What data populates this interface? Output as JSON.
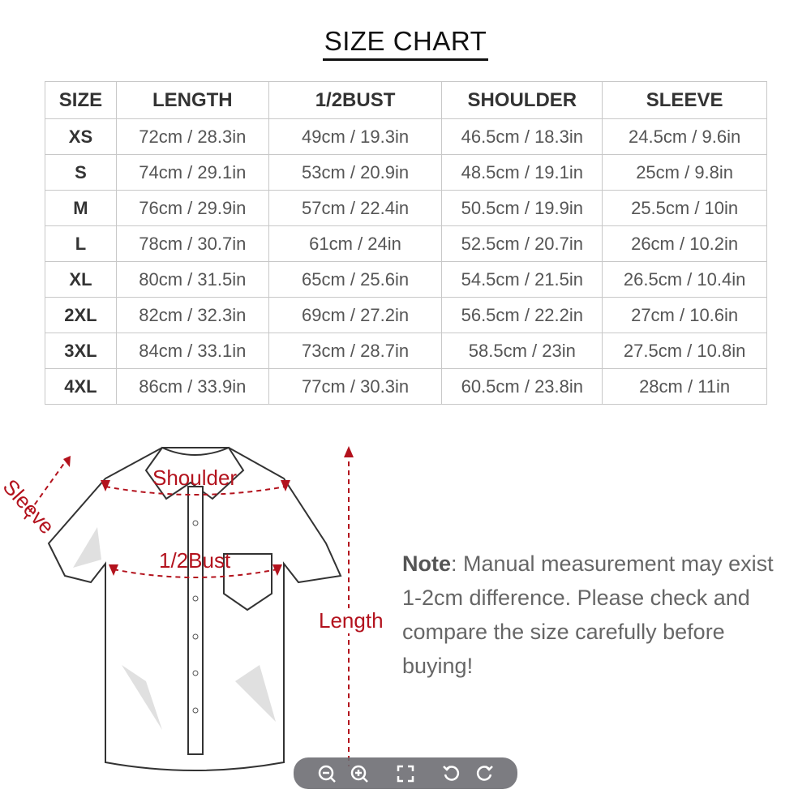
{
  "title": "SIZE CHART",
  "table": {
    "headers": [
      "SIZE",
      "LENGTH",
      "1/2BUST",
      "SHOULDER",
      "SLEEVE"
    ],
    "rows": [
      [
        "XS",
        "72cm / 28.3in",
        "49cm / 19.3in",
        "46.5cm / 18.3in",
        "24.5cm / 9.6in"
      ],
      [
        "S",
        "74cm / 29.1in",
        "53cm / 20.9in",
        "48.5cm / 19.1in",
        "25cm / 9.8in"
      ],
      [
        "M",
        "76cm / 29.9in",
        "57cm / 22.4in",
        "50.5cm / 19.9in",
        "25.5cm / 10in"
      ],
      [
        "L",
        "78cm / 30.7in",
        "61cm / 24in",
        "52.5cm / 20.7in",
        "26cm / 10.2in"
      ],
      [
        "XL",
        "80cm / 31.5in",
        "65cm / 25.6in",
        "54.5cm / 21.5in",
        "26.5cm / 10.4in"
      ],
      [
        "2XL",
        "82cm / 32.3in",
        "69cm / 27.2in",
        "56.5cm / 22.2in",
        "27cm / 10.6in"
      ],
      [
        "3XL",
        "84cm / 33.1in",
        "73cm / 28.7in",
        "58.5cm / 23in",
        "27.5cm / 10.8in"
      ],
      [
        "4XL",
        "86cm / 33.9in",
        "77cm / 30.3in",
        "60.5cm / 23.8in",
        "28cm / 11in"
      ]
    ]
  },
  "diagram": {
    "sleeve": "Sleeve",
    "shoulder": "Shoulder",
    "bust": "1/2Bust",
    "length": "Length",
    "accent": "#b3121d"
  },
  "note": {
    "label": "Note",
    "text": ": Manual measurement may exist 1-2cm difference. Please check and compare the size carefully before buying!"
  },
  "toolbar": {
    "icons": [
      "zoom-out-icon",
      "zoom-in-icon",
      "fullscreen-icon",
      "rotate-left-icon",
      "rotate-right-icon"
    ]
  }
}
